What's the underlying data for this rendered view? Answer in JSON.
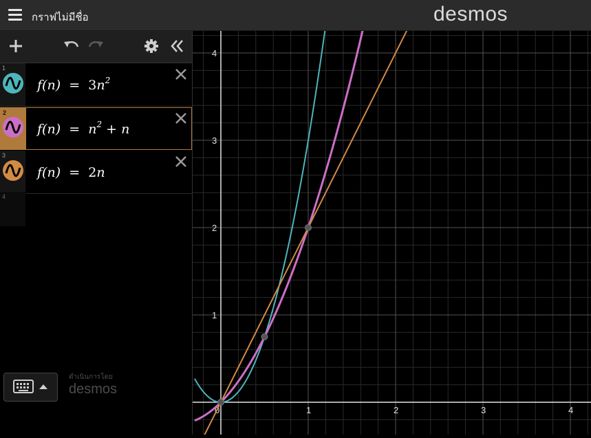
{
  "header": {
    "graph_title": "กราฟไม่มีชื่อ",
    "brand": "desmos"
  },
  "toolbar": {
    "add_icon": "plus-icon",
    "undo_icon": "undo-icon",
    "redo_icon": "redo-icon",
    "settings_icon": "gear-icon",
    "collapse_icon": "double-chevron-left-icon"
  },
  "expressions": [
    {
      "index": "1",
      "lhs": "f",
      "var": "n",
      "rhs_prefix": "3",
      "rhs_var": "n",
      "rhs_exp": "2",
      "rhs_suffix": "",
      "color": "#4db6bc"
    },
    {
      "index": "2",
      "lhs": "f",
      "var": "n",
      "rhs_prefix": "",
      "rhs_var": "n",
      "rhs_exp": "2",
      "rhs_suffix": "+ n",
      "color": "#cc6fc6"
    },
    {
      "index": "3",
      "lhs": "f",
      "var": "n",
      "rhs_prefix": "2",
      "rhs_var": "n",
      "rhs_exp": "",
      "rhs_suffix": "",
      "color": "#d18b45"
    }
  ],
  "empty_index": "4",
  "footer": {
    "powered_by": "ดำเนินการโดย",
    "powered_logo": "desmos",
    "keyboard_icon": "keyboard-icon"
  },
  "chart_data": {
    "type": "line",
    "x_range": [
      -0.3,
      4.2
    ],
    "y_range": [
      -0.35,
      4.25
    ],
    "x_ticks": [
      "0",
      "1",
      "2",
      "3",
      "4"
    ],
    "y_ticks": [
      "1",
      "2",
      "3",
      "4"
    ],
    "grid": true,
    "series": [
      {
        "formula": "3n^2",
        "color": "#4db6bc"
      },
      {
        "formula": "n^2 + n",
        "color": "#cc6fc6"
      },
      {
        "formula": "2n",
        "color": "#d18b45"
      }
    ],
    "intersection_points": [
      {
        "x": 0,
        "y": 0
      },
      {
        "x": 0.5,
        "y": 0.75
      },
      {
        "x": 1,
        "y": 2
      }
    ]
  }
}
